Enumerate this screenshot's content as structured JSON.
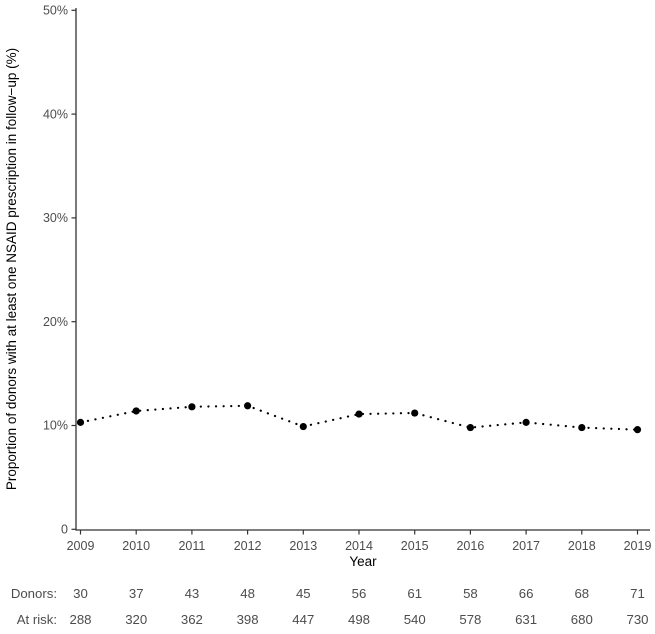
{
  "chart_data": {
    "type": "line",
    "title": "",
    "xlabel": "Year",
    "ylabel": "Proportion of donors with at least one NSAID prescription in follow−up (%)",
    "x": [
      2009,
      2010,
      2011,
      2012,
      2013,
      2014,
      2015,
      2016,
      2017,
      2018,
      2019
    ],
    "values": [
      10.3,
      11.4,
      11.8,
      11.9,
      9.9,
      11.1,
      11.2,
      9.8,
      10.3,
      9.8,
      9.6
    ],
    "ylim": [
      0,
      50
    ],
    "ytick_values": [
      0,
      10,
      20,
      30,
      40,
      50
    ],
    "ytick_labels": [
      "0",
      "10%",
      "20%",
      "30%",
      "40%",
      "50%"
    ],
    "line_style": "dotted",
    "marker": "circle",
    "grid": false,
    "legend": "none",
    "colors": {
      "series": "#000000",
      "axis": "#333333",
      "tick_label": "#4d4d4d",
      "axis_title": "#000000",
      "table_text": "#4d4d4d",
      "background": "#ffffff"
    }
  },
  "risk_table": {
    "rows": [
      {
        "label": "Donors:",
        "values": [
          30,
          37,
          43,
          48,
          45,
          56,
          61,
          58,
          66,
          68,
          71
        ]
      },
      {
        "label": "At risk:",
        "values": [
          288,
          320,
          362,
          398,
          447,
          498,
          540,
          578,
          631,
          680,
          730
        ]
      }
    ]
  }
}
